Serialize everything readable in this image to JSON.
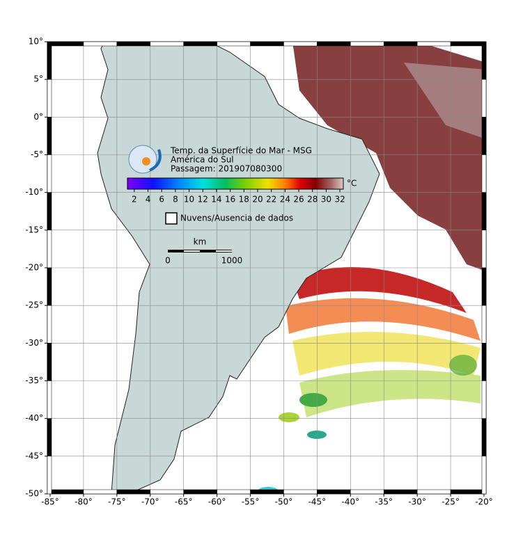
{
  "map": {
    "title": "Temp. da Superfície do Mar - MSG",
    "subtitle": "América do Sul",
    "pass": "Passagem: 201907080300",
    "xlim": [
      -85,
      -20
    ],
    "ylim": [
      -50,
      10
    ],
    "xticks": [
      {
        "value": -85,
        "label": "-85°"
      },
      {
        "value": -80,
        "label": "-80°"
      },
      {
        "value": -75,
        "label": "-75°"
      },
      {
        "value": -70,
        "label": "-70°"
      },
      {
        "value": -65,
        "label": "-65°"
      },
      {
        "value": -60,
        "label": "-60°"
      },
      {
        "value": -55,
        "label": "-55°"
      },
      {
        "value": -50,
        "label": "-50°"
      },
      {
        "value": -45,
        "label": "-45°"
      },
      {
        "value": -40,
        "label": "-40°"
      },
      {
        "value": -35,
        "label": "-35°"
      },
      {
        "value": -30,
        "label": "-30°"
      },
      {
        "value": -25,
        "label": "-25°"
      },
      {
        "value": -20,
        "label": "-20°"
      }
    ],
    "yticks": [
      {
        "value": 10,
        "label": "10°"
      },
      {
        "value": 5,
        "label": "5°"
      },
      {
        "value": 0,
        "label": "0°"
      },
      {
        "value": -5,
        "label": "-5°"
      },
      {
        "value": -10,
        "label": "-10°"
      },
      {
        "value": -15,
        "label": "-15°"
      },
      {
        "value": -20,
        "label": "-20°"
      },
      {
        "value": -25,
        "label": "-25°"
      },
      {
        "value": -30,
        "label": "-30°"
      },
      {
        "value": -35,
        "label": "-35°"
      },
      {
        "value": -40,
        "label": "-40°"
      },
      {
        "value": -45,
        "label": "-45°"
      },
      {
        "value": -50,
        "label": "-50°"
      }
    ],
    "grid": true,
    "colorbar": {
      "unit": "°C",
      "lim": [
        1,
        32.5
      ],
      "ticks": [
        2,
        4,
        6,
        8,
        10,
        12,
        14,
        16,
        18,
        20,
        22,
        24,
        26,
        28,
        30,
        32
      ]
    },
    "legend": "Nuvens/Ausencia de dados",
    "scale": {
      "unit": "km",
      "start": "0",
      "end": "1000"
    }
  }
}
